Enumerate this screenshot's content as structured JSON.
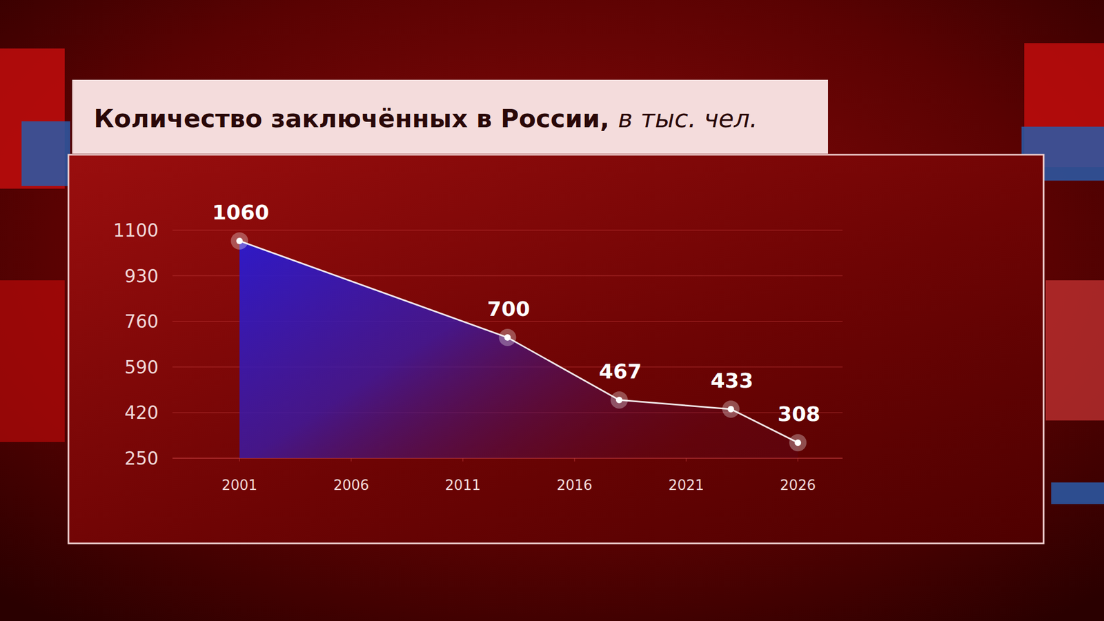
{
  "chart_data": {
    "type": "line",
    "title": "Количество заключённых в России,",
    "subtitle": "в тыс. чел.",
    "x": [
      2001,
      2013,
      2018,
      2023,
      2026
    ],
    "values": [
      1060,
      700,
      467,
      433,
      308
    ],
    "xlim": [
      1998,
      2028
    ],
    "xticks": [
      2001,
      2006,
      2011,
      2016,
      2021,
      2026
    ],
    "ylim": [
      250,
      1100
    ],
    "yticks": [
      1100,
      930,
      760,
      590,
      420,
      250
    ],
    "grid": true,
    "data_labels": true,
    "color": "#ffffff",
    "marker": "circle"
  }
}
